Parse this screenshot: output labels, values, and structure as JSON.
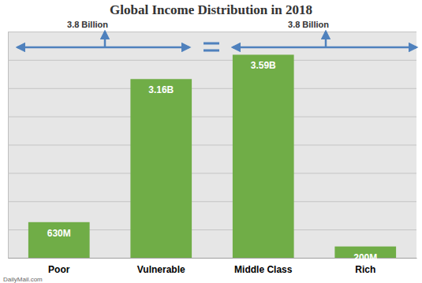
{
  "chart_data": {
    "type": "bar",
    "title": "Global Income Distribution in 2018",
    "categories": [
      "Poor",
      "Vulnerable",
      "Middle Class",
      "Rich"
    ],
    "values": [
      630,
      3160,
      3590,
      200
    ],
    "value_labels": [
      "630M",
      "3.16B",
      "3.59B",
      "200M"
    ],
    "color": "#70ad47",
    "ylim": [
      0,
      4000
    ],
    "yticks": [
      0,
      500,
      1000,
      1500,
      2000,
      2500,
      3000,
      3500,
      4000
    ],
    "grid": true,
    "tick_labels": "x",
    "data_labels": true,
    "annotations": [
      "3.8 Billion",
      "3.8 Billion",
      "DailyMail.com"
    ]
  }
}
